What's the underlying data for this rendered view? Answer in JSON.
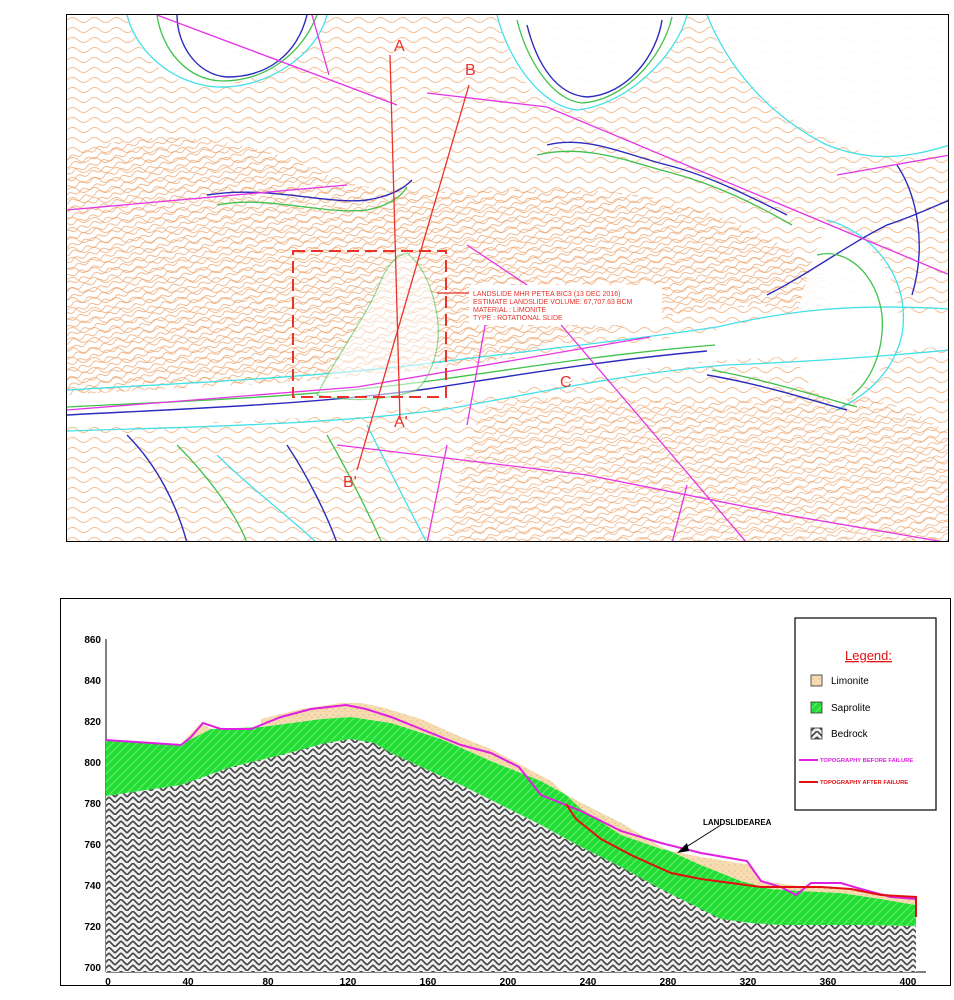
{
  "map": {
    "section_labels": {
      "a_top": "A",
      "a_bottom": "A'",
      "b_top": "B",
      "b_bottom": "B'",
      "c": "C"
    },
    "annotation_lines": [
      "LANDSLIDE MHR PETEA BIC3 (13 DEC 2016)",
      "ESTIMATE LANDSLIDE VOLUME: 67,707.63 BCM",
      "MATERIAL : LIMONITE",
      "TYPE : ROTATIONAL SLIDE"
    ],
    "colors": {
      "contour": "#f3b27e",
      "contour_dense": "#ea9a5e",
      "cyan": "#44e0e8",
      "blue": "#2b2bbd",
      "green": "#3fc24a",
      "magenta": "#e535e5",
      "red": "#e8322b"
    }
  },
  "section": {
    "yticks": [
      "860",
      "840",
      "820",
      "800",
      "780",
      "760",
      "740",
      "720",
      "700"
    ],
    "xticks": [
      "0",
      "40",
      "80",
      "120",
      "160",
      "200",
      "240",
      "280",
      "320",
      "360",
      "400"
    ],
    "landslide_label": "LANDSLIDEAREA",
    "legend": {
      "title": "Legend:",
      "items": [
        "Limonite",
        "Saprolite",
        "Bedrock"
      ],
      "lines": [
        "TOPOGRAPHY BEFORE FAILURE",
        "TOPOGRAPHY AFTER FAILURE"
      ]
    },
    "colors": {
      "limonite": "#f6dcb0",
      "saprolite": "#22dd33",
      "bedrock": "#444444",
      "topo_before": "#e020e0",
      "topo_after": "#e01010",
      "legend_title": "#e81010"
    }
  }
}
